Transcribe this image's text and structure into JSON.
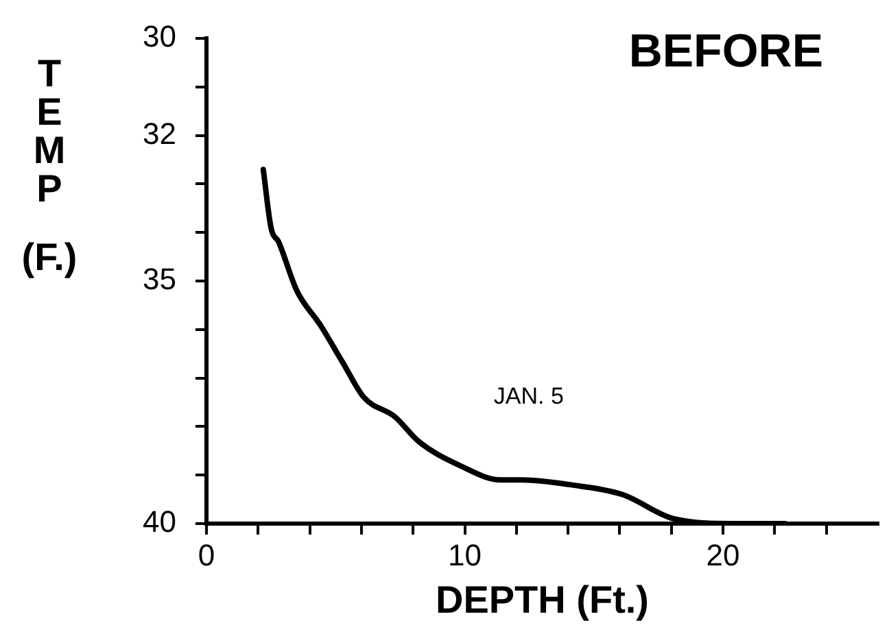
{
  "chart_data": {
    "type": "line",
    "title": "BEFORE",
    "xlabel": "DEPTH (Ft.)",
    "ylabel": "TEMP (F.)",
    "annotations": [
      "JAN. 5"
    ],
    "x": [
      2.2,
      2.5,
      2.8,
      3.5,
      4.4,
      5.3,
      6.1,
      7.3,
      8.2,
      9.8,
      11.4,
      12.2,
      14.1,
      16.1,
      18.1,
      20.4,
      22.4
    ],
    "series": [
      {
        "color": "#000000",
        "values": [
          32.7,
          33.9,
          34.2,
          35.2,
          35.9,
          36.7,
          37.4,
          37.8,
          38.3,
          38.8,
          39.1,
          39.1,
          39.2,
          39.4,
          39.9,
          40.0,
          40.0
        ]
      }
    ],
    "xlim": [
      0,
      26
    ],
    "xticks": [
      0,
      {
        "value": 2,
        "label": null
      },
      {
        "value": 4,
        "label": null
      },
      {
        "value": 6,
        "label": null
      },
      {
        "value": 8,
        "label": null
      },
      10,
      {
        "value": 12,
        "label": null
      },
      {
        "value": 14,
        "label": null
      },
      {
        "value": 16,
        "label": null
      },
      {
        "value": 18,
        "label": null
      },
      20,
      {
        "value": 22,
        "label": null
      },
      {
        "value": 24,
        "label": null
      }
    ],
    "ylim": [
      40,
      30
    ],
    "yticks": [
      30,
      {
        "value": 31,
        "label": null
      },
      32,
      {
        "value": 33,
        "label": null
      },
      {
        "value": 34,
        "label": null
      },
      35,
      {
        "value": 36,
        "label": null
      },
      {
        "value": 37,
        "label": null
      },
      {
        "value": 38,
        "label": null
      },
      {
        "value": 39,
        "label": null
      },
      40
    ],
    "marker": "none",
    "line_style": "solid",
    "legend": false
  }
}
